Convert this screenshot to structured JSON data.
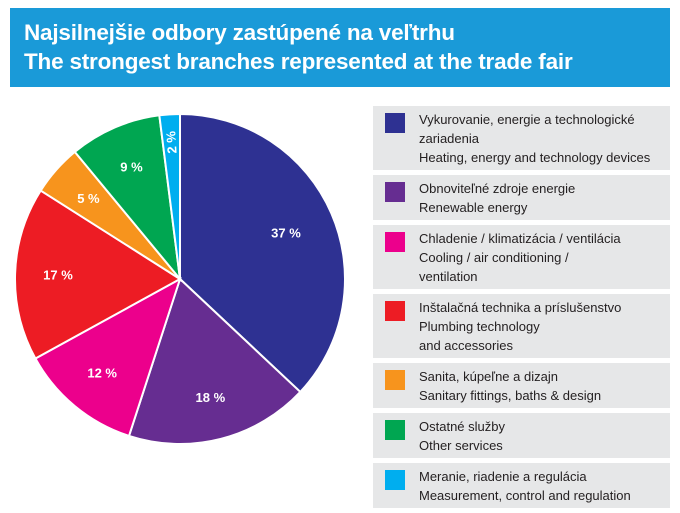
{
  "header": {
    "title_sk": "Najsilnejšie odbory zastúpené na veľtrhu",
    "title_en": "The strongest branches represented at the trade fair"
  },
  "chart_data": {
    "type": "pie",
    "title": "Najsilnejšie odbory zastúpené na veľtrhu / The strongest branches represented at the trade fair",
    "slices": [
      {
        "label_sk": "Vykurovanie, energie a technologické zariadenia",
        "label_en": "Heating, energy and technology devices",
        "value": 37,
        "value_label": "37 %",
        "color": "#2e3192"
      },
      {
        "label_sk": "Obnoviteľné zdroje energie",
        "label_en": "Renewable energy",
        "value": 18,
        "value_label": "18 %",
        "color": "#662d91"
      },
      {
        "label_sk": "Chladenie / klimatizácia / ventilácia",
        "label_en": "Cooling / air conditioning / ventilation",
        "value": 12,
        "value_label": "12 %",
        "color": "#ec008c"
      },
      {
        "label_sk": "Inštalačná technika a príslušenstvo",
        "label_en": "Plumbing technology and accessories",
        "value": 17,
        "value_label": "17 %",
        "color": "#ed1c24"
      },
      {
        "label_sk": "Sanita, kúpeľne a dizajn",
        "label_en": "Sanitary fittings, baths & design",
        "value": 5,
        "value_label": "5 %",
        "color": "#f7941d"
      },
      {
        "label_sk": "Ostatné služby",
        "label_en": "Other services",
        "value": 9,
        "value_label": "9 %",
        "color": "#00a651"
      },
      {
        "label_sk": "Meranie, riadenie a regulácia",
        "label_en": "Measurement, control and regulation",
        "value": 2,
        "value_label": "2 %",
        "color": "#00aeef"
      }
    ]
  },
  "legend": [
    {
      "lines": [
        "Vykurovanie, energie a technologické",
        "zariadenia",
        "Heating, energy and technology devices"
      ]
    },
    {
      "lines": [
        "Obnoviteľné zdroje energie",
        "Renewable energy"
      ]
    },
    {
      "lines": [
        "Chladenie / klimatizácia / ventilácia",
        "Cooling / air conditioning /",
        "ventilation"
      ]
    },
    {
      "lines": [
        "Inštalačná technika a príslušenstvo",
        "Plumbing technology",
        "and accessories"
      ]
    },
    {
      "lines": [
        "Sanita, kúpeľne a dizajn",
        "Sanitary fittings, baths & design"
      ]
    },
    {
      "lines": [
        "Ostatné služby",
        "Other services"
      ]
    },
    {
      "lines": [
        "Meranie, riadenie a regulácia",
        "Measurement, control and regulation"
      ]
    }
  ]
}
